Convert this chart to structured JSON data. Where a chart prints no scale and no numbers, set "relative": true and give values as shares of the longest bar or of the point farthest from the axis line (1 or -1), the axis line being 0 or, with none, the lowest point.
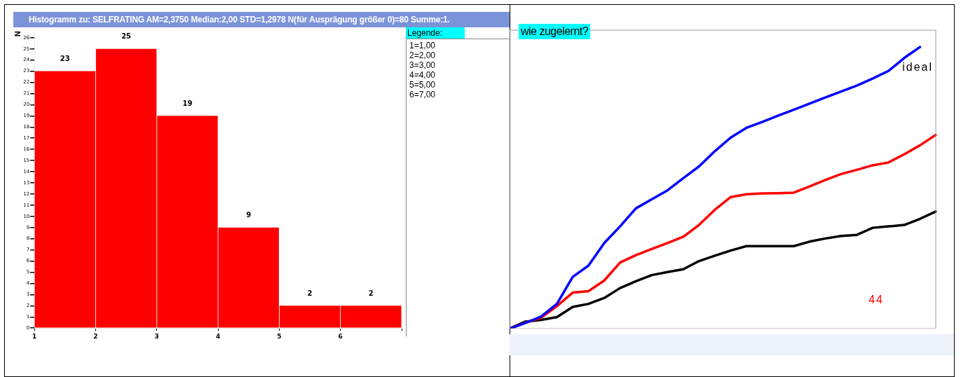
{
  "chart_data": [
    {
      "type": "histogram",
      "title": "Histogramm zu: SELFRATING AM=2,3750 Median:2,00 STD=1,2978 N(für Ausprägung größer 0)=80 Summe:1.",
      "ylabel": "N",
      "legend_title": "Legende:",
      "annotations": [
        "1=1,00",
        "2=2,00",
        "3=3,00",
        "4=4,00",
        "5=5,00",
        "6=7,00"
      ],
      "bins": [
        1,
        2,
        3,
        4,
        5,
        6,
        7
      ],
      "values": [
        23,
        25,
        19,
        9,
        2,
        2
      ],
      "color": "#ff0000",
      "xlim": [
        1,
        7
      ],
      "xticks": [
        1,
        2,
        3,
        4,
        5,
        6,
        {
          "value": 7,
          "label": null
        }
      ],
      "ylim": [
        0,
        26.6
      ],
      "yticks": [
        0,
        1,
        2,
        3,
        4,
        5,
        6,
        7,
        8,
        9,
        10,
        11,
        12,
        13,
        14,
        15,
        16,
        17,
        18,
        19,
        20,
        21,
        22,
        23,
        24,
        25,
        26
      ],
      "data_labels": true,
      "grid": false,
      "legend": false
    },
    {
      "type": "line",
      "title": "wie zugelernt?",
      "relative": true,
      "tick_labels": false,
      "grid": false,
      "legend": false,
      "marker": "none",
      "line_style": "solid",
      "annotations": [
        "ideal",
        "44"
      ],
      "categories": [
        null,
        null,
        null,
        null,
        null,
        null,
        null,
        null,
        null,
        null,
        null,
        null,
        null,
        null,
        null,
        null,
        null,
        null,
        null,
        null,
        null,
        null,
        null,
        null,
        null,
        null,
        null,
        null
      ],
      "series": [
        {
          "color": "#0000ff",
          "values": [
            0,
            0.02,
            0.043,
            0.088,
            0.184,
            0.224,
            0.304,
            0.363,
            0.427,
            0.459,
            0.491,
            0.534,
            0.576,
            0.63,
            0.678,
            0.713,
            0.734,
            0.756,
            0.777,
            0.799,
            0.821,
            0.842,
            0.863,
            0.888,
            0.915,
            0.961,
            1,
            null
          ]
        },
        {
          "color": "#ff0000",
          "values": [
            0,
            0.021,
            0.039,
            0.08,
            0.128,
            0.133,
            0.171,
            0.235,
            0.261,
            0.283,
            0.304,
            0.326,
            0.368,
            0.422,
            0.467,
            0.477,
            0.48,
            0.481,
            0.483,
            0.505,
            0.528,
            0.549,
            0.564,
            0.58,
            0.59,
            0.619,
            0.651,
            0.688
          ]
        },
        {
          "color": "#000000",
          "values": [
            0,
            0.025,
            0.031,
            0.041,
            0.077,
            0.088,
            0.109,
            0.144,
            0.168,
            0.19,
            0.201,
            0.211,
            0.24,
            0.259,
            0.277,
            0.293,
            0.293,
            0.293,
            0.293,
            0.309,
            0.32,
            0.329,
            0.333,
            0.358,
            0.363,
            0.368,
            0.39,
            0.416
          ]
        }
      ]
    }
  ]
}
